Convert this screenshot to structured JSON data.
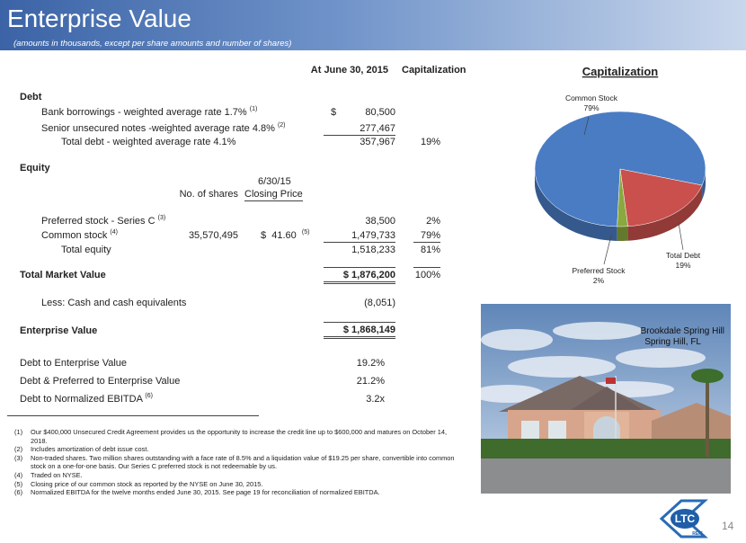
{
  "header": {
    "title": "Enterprise Value",
    "subtitle": "(amounts in thousands, except per share amounts and number of shares)"
  },
  "table": {
    "headers": [
      "At June 30, 2015",
      "Capitalization"
    ],
    "debt": {
      "heading": "Debt",
      "rows": [
        {
          "label": "Bank borrowings - weighted average rate 1.7%",
          "note": "(1)",
          "currency": "$",
          "amount": "80,500"
        },
        {
          "label": "Senior unsecured notes -weighted average rate 4.8%",
          "note": "(2)",
          "amount": "277,467"
        },
        {
          "label": "Total debt - weighted average rate 4.1%",
          "amount": "357,967",
          "capitalization": "19%"
        }
      ]
    },
    "equity": {
      "heading": "Equity",
      "price_date": "6/30/15",
      "shares_header": "No. of shares",
      "price_header": "Closing Price",
      "rows": [
        {
          "label": "Preferred stock - Series C",
          "note": "(3)",
          "amount": "38,500",
          "capitalization": "2%"
        },
        {
          "label": "Common stock",
          "note": "(4)",
          "shares": "35,570,495",
          "price": "$  41.60",
          "price_note": "(5)",
          "amount": "1,479,733",
          "capitalization": "79%"
        },
        {
          "label": "Total equity",
          "amount": "1,518,233",
          "capitalization": "81%"
        }
      ]
    },
    "total_market_value": {
      "label": "Total Market Value",
      "amount": "$ 1,876,200",
      "capitalization": "100%"
    },
    "cash": {
      "label": "Less:  Cash and cash equivalents",
      "amount": "(8,051)"
    },
    "enterprise_value": {
      "label": "Enterprise Value",
      "amount": "$ 1,868,149"
    },
    "ratios": [
      {
        "label": "Debt to Enterprise Value",
        "value": "19.2%"
      },
      {
        "label": "Debt & Preferred to Enterprise Value",
        "value": "21.2%"
      },
      {
        "label": "Debt to Normalized EBITDA",
        "note": "(6)",
        "value": "3.2x"
      }
    ]
  },
  "footnotes": [
    {
      "number": "(1)",
      "text": "Our $400,000 Unsecured Credit Agreement provides us the opportunity to increase the credit line up to $600,000 and matures on October 14, 2018."
    },
    {
      "number": "(2)",
      "text": "Includes amortization of debt issue cost."
    },
    {
      "number": "(3)",
      "text": "Non-traded shares.  Two million shares outstanding with a face rate of 8.5% and a liquidation value of $19.25 per share, convertible into common stock on a one-for-one basis.  Our Series C preferred stock is not redeemable by us."
    },
    {
      "number": "(4)",
      "text": "Traded on NYSE."
    },
    {
      "number": "(5)",
      "text": "Closing price of our common stock as reported by the NYSE on June 30, 2015."
    },
    {
      "number": "(6)",
      "text": "Normalized EBITDA for the twelve months ended June 30, 2015.  See page 19 for reconciliation of normalized EBITDA."
    }
  ],
  "chart_data": {
    "type": "pie",
    "title": "Capitalization",
    "categories": [
      "Common Stock",
      "Total Debt",
      "Preferred Stock"
    ],
    "values": [
      79,
      19,
      2
    ],
    "value_labels": [
      "79%",
      "19%",
      "2%"
    ],
    "colors": [
      "#4a7cc4",
      "#c9504d",
      "#8aa83f"
    ]
  },
  "photo": {
    "caption": [
      "Brookdale Spring Hill",
      "Spring Hill, FL"
    ]
  },
  "logo": {
    "name": "LTC",
    "tag": "REIT"
  },
  "page_number": "14"
}
